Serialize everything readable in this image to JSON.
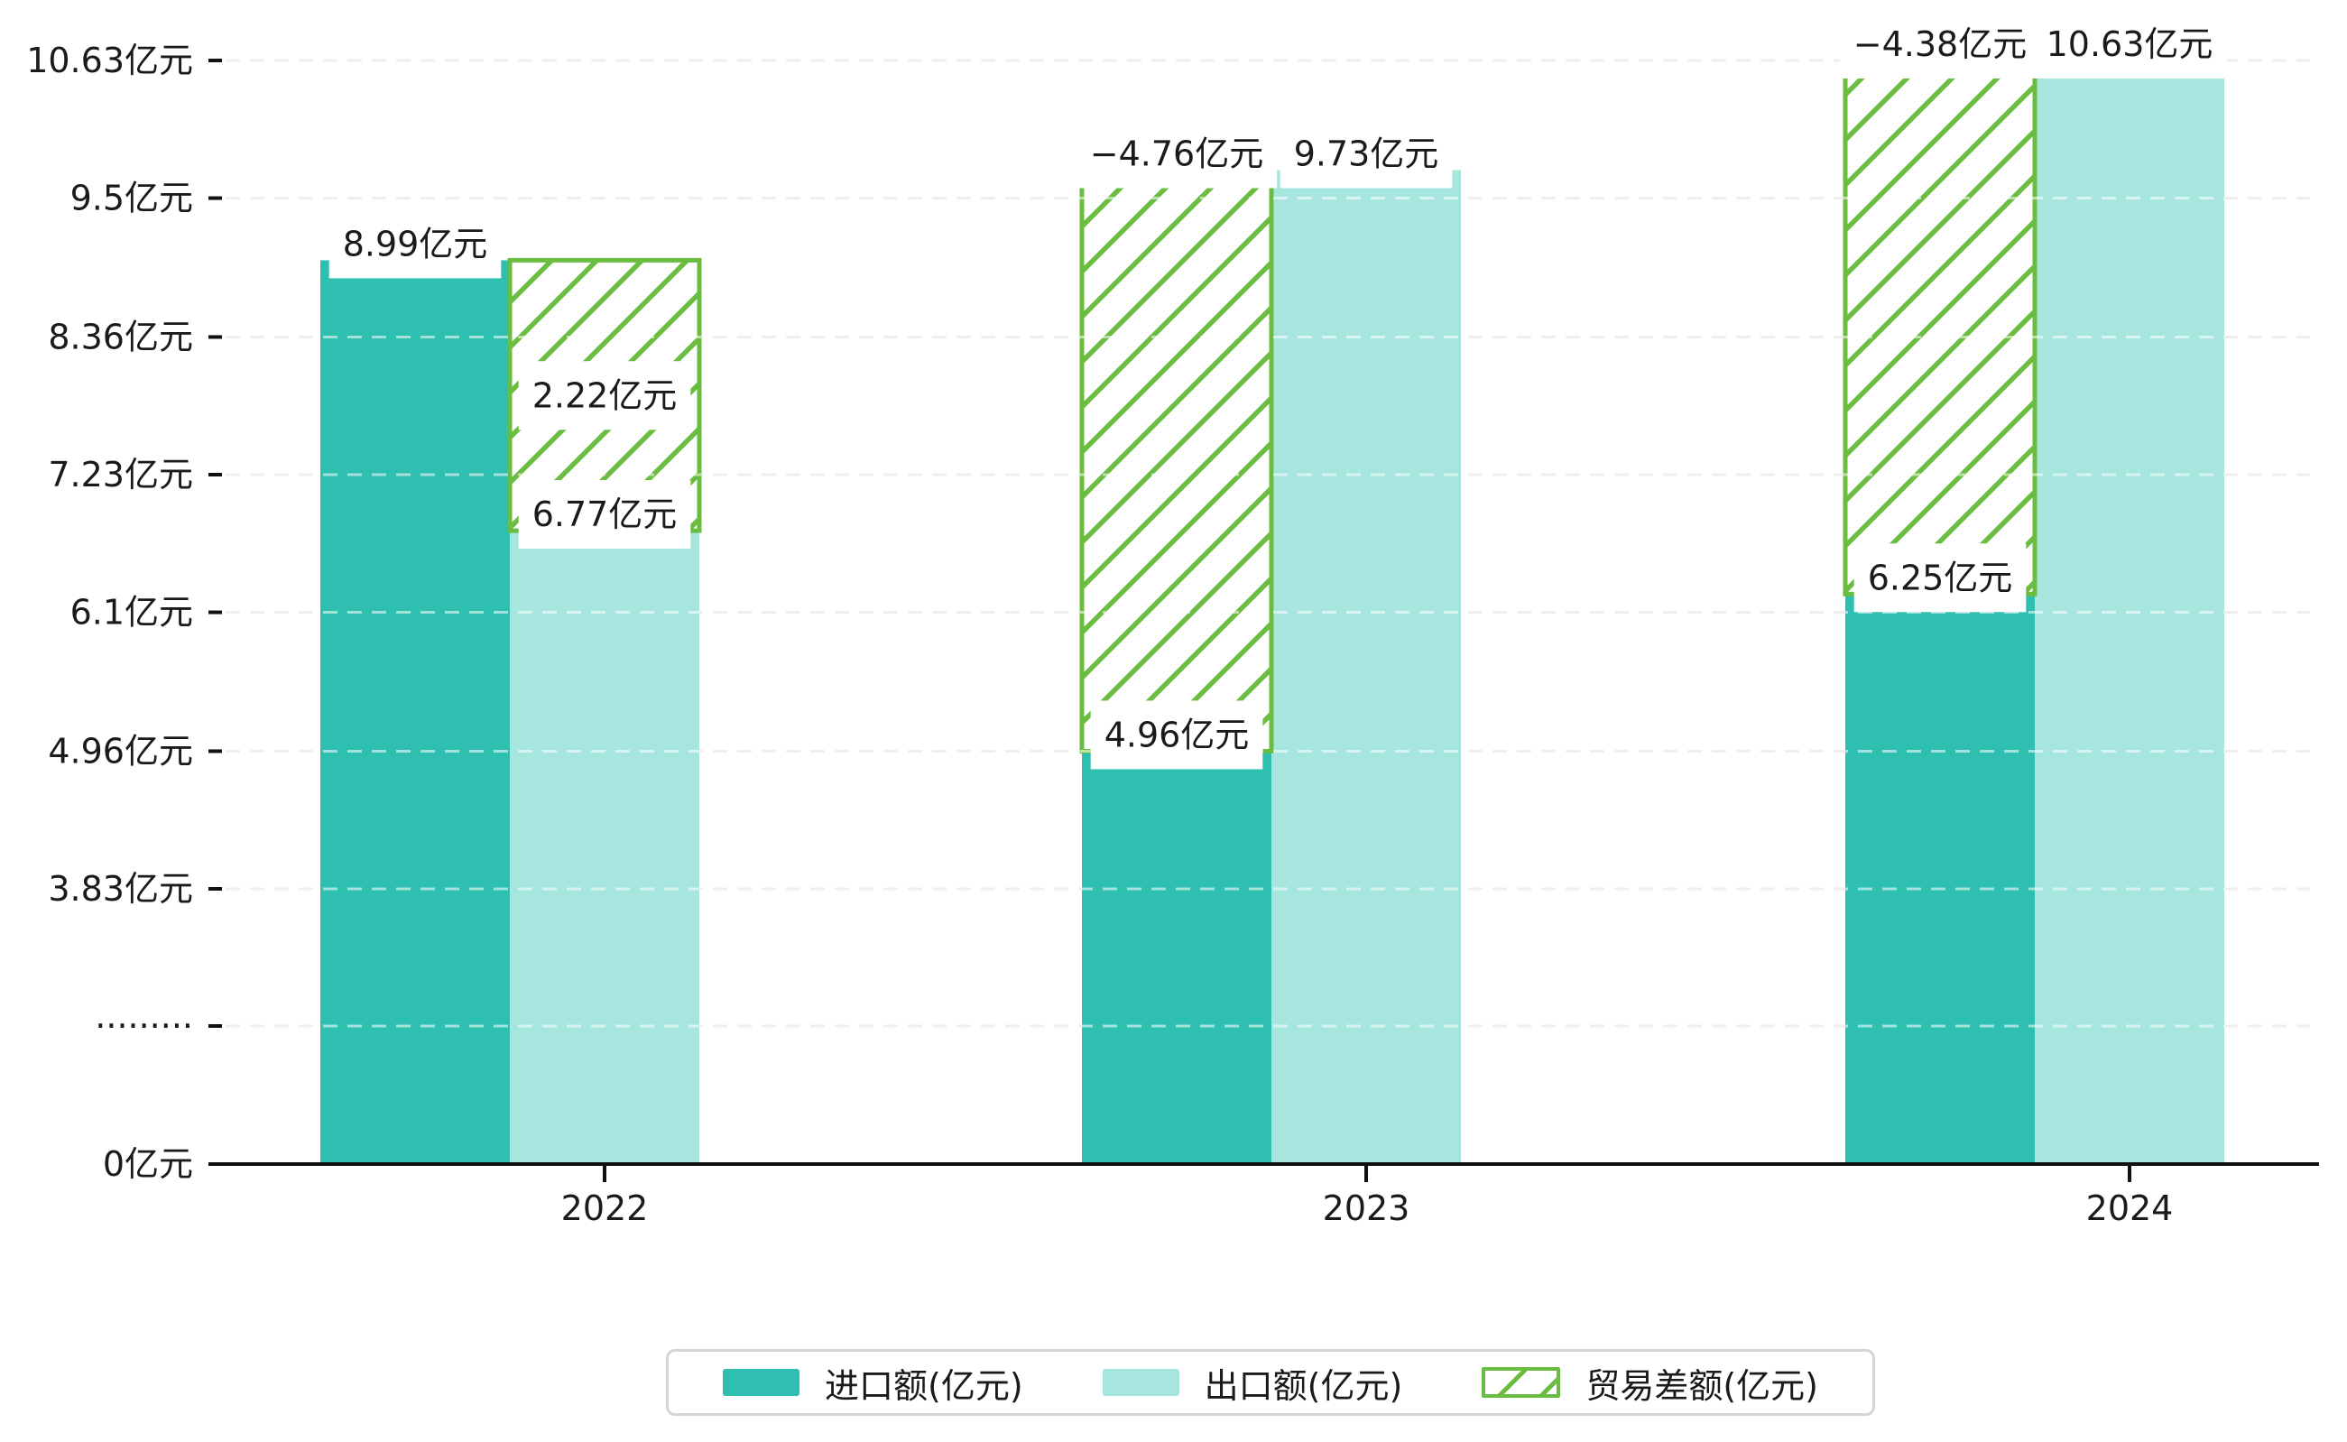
{
  "chart_data": {
    "type": "bar",
    "title": "",
    "categories": [
      "2022",
      "2023",
      "2024"
    ],
    "unit": "亿元",
    "series": [
      {
        "name": "进口额(亿元)",
        "values": [
          8.99,
          4.96,
          6.25
        ],
        "color": "#2FBFB0",
        "style": "solid"
      },
      {
        "name": "出口额(亿元)",
        "values": [
          6.77,
          9.73,
          10.63
        ],
        "color": "#A6E6DE",
        "style": "solid"
      },
      {
        "name": "贸易差额(亿元)",
        "values": [
          2.22,
          -4.76,
          -4.38
        ],
        "color": "#6ABD41",
        "style": "hatched"
      }
    ],
    "bar_value_labels": {
      "import": [
        "8.99亿元",
        "4.96亿元",
        "6.25亿元"
      ],
      "export": [
        "6.77亿元",
        "9.73亿元",
        "10.63亿元"
      ],
      "diff": [
        "2.22亿元",
        "−4.76亿元",
        "−4.38亿元"
      ]
    },
    "y_axis": {
      "has_break": true,
      "ticks": [
        {
          "label": "0亿元",
          "value": 0
        },
        {
          "label": "·········",
          "value": "break"
        },
        {
          "label": "3.83亿元",
          "value": 3.83
        },
        {
          "label": "4.96亿元",
          "value": 4.96
        },
        {
          "label": "6.1亿元",
          "value": 6.1
        },
        {
          "label": "7.23亿元",
          "value": 7.23
        },
        {
          "label": "8.36亿元",
          "value": 8.36
        },
        {
          "label": "9.5亿元",
          "value": 9.5
        },
        {
          "label": "10.63亿元",
          "value": 10.63
        }
      ]
    },
    "x_axis": {
      "tick_labels": [
        "2022",
        "2023",
        "2024"
      ]
    },
    "legend_position": "bottom",
    "grid": true
  },
  "colors": {
    "import_bar": "#2FBFB0",
    "export_bar": "#A6E6DE",
    "diff_hatch": "#6ABD41",
    "gridline": "#dcdcdc",
    "axis": "#111111",
    "label_text": "#1a1a1a",
    "legend_border": "#d5d5d5"
  }
}
